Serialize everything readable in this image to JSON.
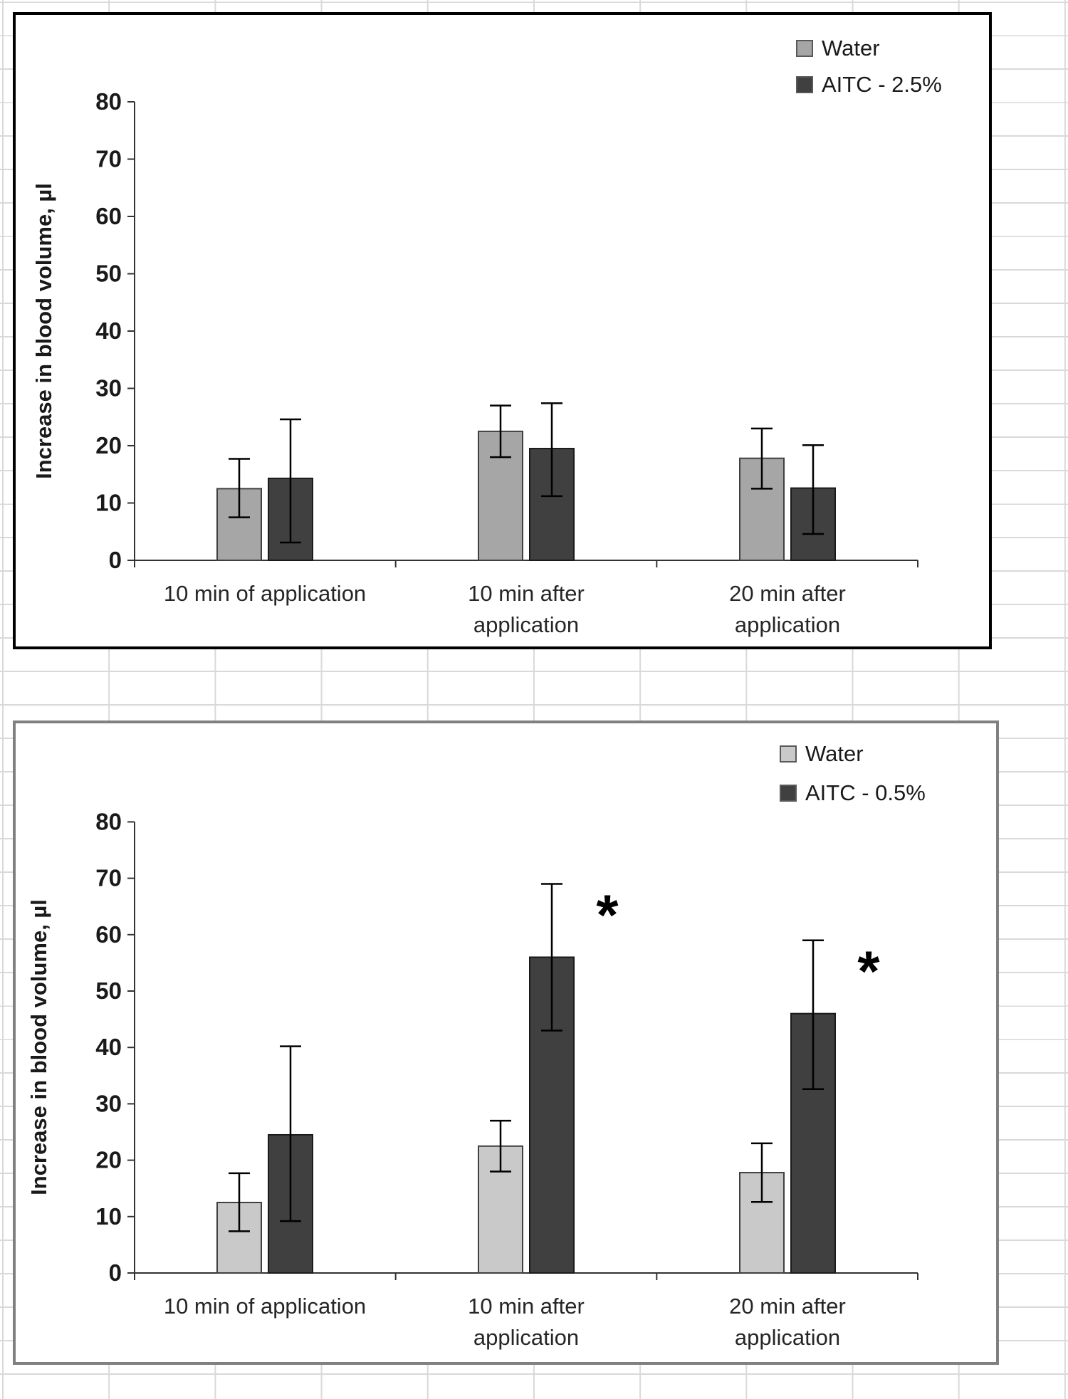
{
  "sheet": {
    "gridline_color": "#d9d9d9",
    "background": "#ffffff",
    "chart1_border_color": "#000000",
    "chart2_border_color": "#808080"
  },
  "charts": [
    {
      "id": "chart-aitc-2-5",
      "y_axis_title": "Increase in blood volume, µl",
      "chart_data": {
        "type": "bar",
        "title": "",
        "xlabel": "",
        "ylabel": "Increase in blood volume, µl",
        "ylim": [
          0,
          80
        ],
        "ytick_step": 10,
        "grid": false,
        "legend_position": "top-right",
        "categories": [
          "10 min of application",
          "10 min after application",
          "20 min after application"
        ],
        "category_lines": [
          [
            "10 min of application"
          ],
          [
            "10 min after",
            "application"
          ],
          [
            "20 min after",
            "application"
          ]
        ],
        "series": [
          {
            "name": "Water",
            "color": "#A6A6A6",
            "edge_color": "#404040",
            "values": [
              12.5,
              22.5,
              17.8
            ],
            "err_plus": [
              5.2,
              4.5,
              5.2
            ],
            "err_minus": [
              5.0,
              4.5,
              5.3
            ]
          },
          {
            "name": "AITC - 2.5%",
            "color": "#404040",
            "edge_color": "#1a1a1a",
            "values": [
              14.3,
              19.5,
              12.6
            ],
            "err_plus": [
              10.3,
              7.9,
              7.5
            ],
            "err_minus": [
              11.2,
              8.3,
              8.0
            ]
          }
        ],
        "annotations": []
      }
    },
    {
      "id": "chart-aitc-0-5",
      "y_axis_title": "Increase in blood volume, µl",
      "chart_data": {
        "type": "bar",
        "title": "",
        "xlabel": "",
        "ylabel": "Increase in blood volume, µl",
        "ylim": [
          0,
          80
        ],
        "ytick_step": 10,
        "grid": false,
        "legend_position": "top-right",
        "categories": [
          "10 min of application",
          "10 min after application",
          "20 min after application"
        ],
        "category_lines": [
          [
            "10 min of application"
          ],
          [
            "10 min after",
            "application"
          ],
          [
            "20 min after",
            "application"
          ]
        ],
        "series": [
          {
            "name": "Water",
            "color": "#C9C9C9",
            "edge_color": "#404040",
            "values": [
              12.5,
              22.5,
              17.8
            ],
            "err_plus": [
              5.2,
              4.5,
              5.2
            ],
            "err_minus": [
              5.1,
              4.5,
              5.2
            ]
          },
          {
            "name": "AITC - 0.5%",
            "color": "#404040",
            "edge_color": "#1a1a1a",
            "values": [
              24.5,
              56.0,
              46.0
            ],
            "err_plus": [
              15.7,
              13.0,
              13.0
            ],
            "err_minus": [
              15.3,
              13.0,
              13.4
            ]
          }
        ],
        "annotations": [
          {
            "text": "*",
            "category_index": 1,
            "series_index": 1
          },
          {
            "text": "*",
            "category_index": 2,
            "series_index": 1
          }
        ]
      }
    }
  ]
}
